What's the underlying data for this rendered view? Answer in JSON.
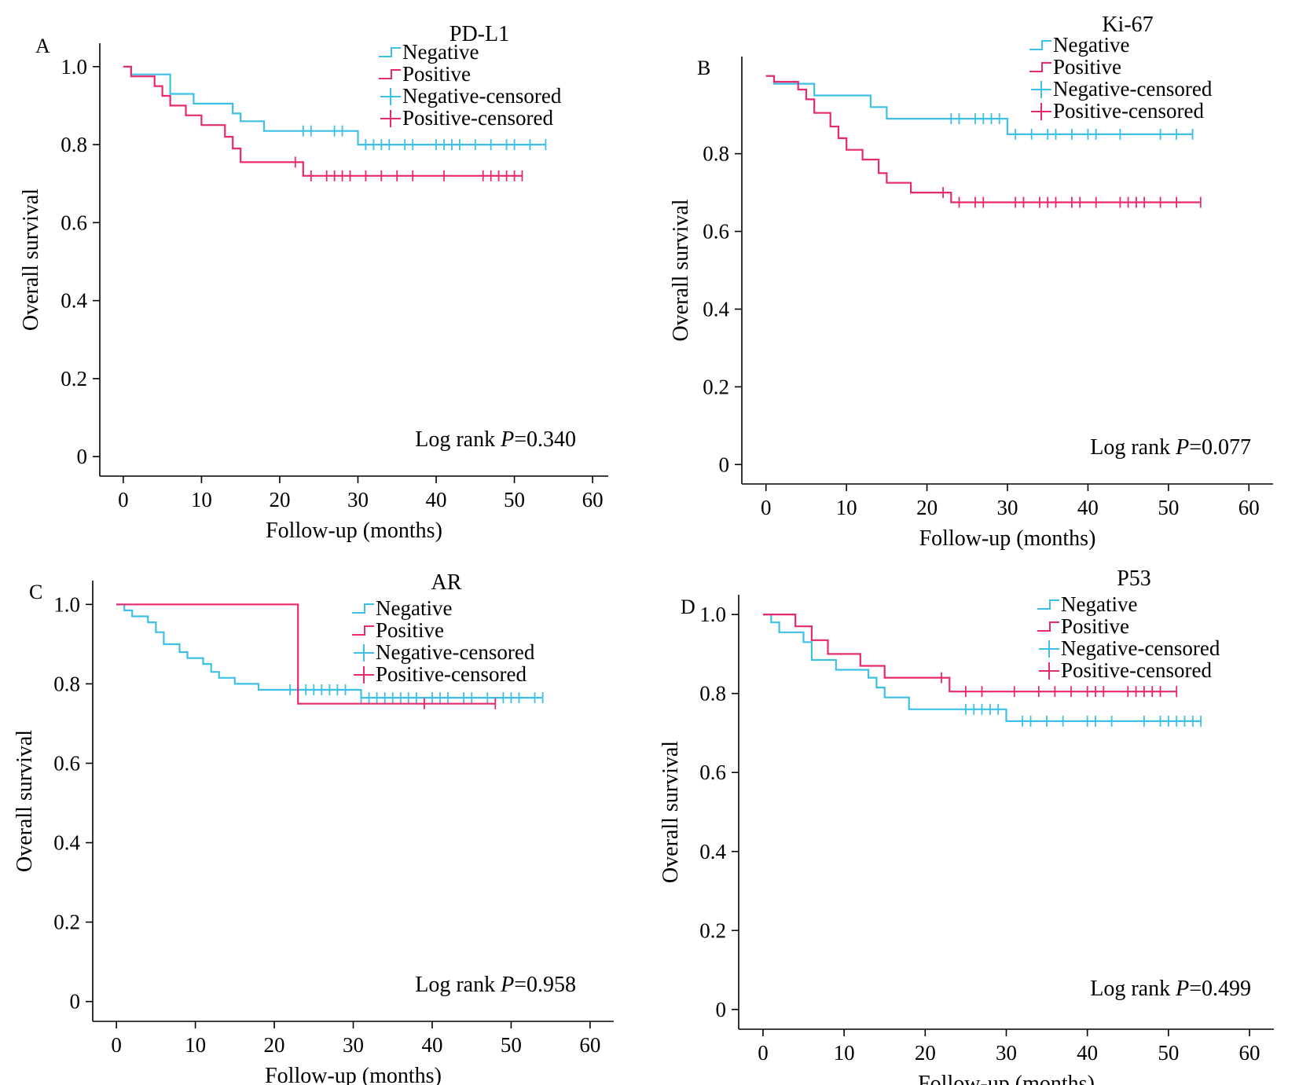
{
  "colors": {
    "negative": "#3cc0e6",
    "positive": "#e8286f"
  },
  "chart_data": [
    {
      "type": "line",
      "panel": "A",
      "title": "PD-L1",
      "xlabel": "Follow-up (months)",
      "ylabel": "Overall survival",
      "xlim": [
        -3,
        62
      ],
      "ylim": [
        -0.05,
        1.06
      ],
      "xticks": [
        0,
        10,
        20,
        30,
        40,
        50,
        60
      ],
      "yticks": [
        0,
        0.2,
        0.4,
        0.6,
        0.8,
        1.0
      ],
      "ytick_labels": [
        "0",
        "0.2",
        "0.4",
        "0.6",
        "0.8",
        "1.0"
      ],
      "legend": [
        "Negative",
        "Positive",
        "Negative-censored",
        "Positive-censored"
      ],
      "annotation": {
        "prefix": "Log rank ",
        "p_symbol": "P",
        "value": "=0.340"
      },
      "series": [
        {
          "name": "Negative",
          "color_key": "negative",
          "steps": [
            [
              0,
              1.0
            ],
            [
              1,
              0.98
            ],
            [
              6,
              0.93
            ],
            [
              9,
              0.905
            ],
            [
              14,
              0.88
            ],
            [
              15,
              0.86
            ],
            [
              18,
              0.835
            ],
            [
              30,
              0.8
            ],
            [
              54,
              0.8
            ]
          ],
          "censored": [
            23,
            24,
            27,
            28,
            31,
            32,
            33,
            34,
            36,
            37,
            40,
            41,
            42,
            43,
            45,
            47,
            49,
            50,
            52,
            54
          ]
        },
        {
          "name": "Positive",
          "color_key": "positive",
          "steps": [
            [
              0,
              1.0
            ],
            [
              1,
              0.975
            ],
            [
              4,
              0.95
            ],
            [
              5,
              0.925
            ],
            [
              6,
              0.9
            ],
            [
              8,
              0.875
            ],
            [
              10,
              0.85
            ],
            [
              13,
              0.82
            ],
            [
              14,
              0.79
            ],
            [
              15,
              0.755
            ],
            [
              23,
              0.72
            ],
            [
              51,
              0.72
            ]
          ],
          "censored": [
            22,
            24,
            26,
            27,
            28,
            29,
            31,
            33,
            35,
            37,
            41,
            46,
            47,
            48,
            49,
            50,
            51
          ]
        }
      ]
    },
    {
      "type": "line",
      "panel": "B",
      "title": "Ki-67",
      "xlabel": "Follow-up (months)",
      "ylabel": "Overall survival",
      "xlim": [
        -3,
        63
      ],
      "ylim": [
        -0.05,
        1.05
      ],
      "xticks": [
        0,
        10,
        20,
        30,
        40,
        50,
        60
      ],
      "yticks": [
        0,
        0.2,
        0.4,
        0.6,
        0.8
      ],
      "ytick_labels": [
        "0",
        "0.2",
        "0.4",
        "0.6",
        "0.8"
      ],
      "legend": [
        "Negative",
        "Positive",
        "Negative-censored",
        "Positive-censored"
      ],
      "annotation": {
        "prefix": "Log rank ",
        "p_symbol": "P",
        "value": "=0.077"
      },
      "series": [
        {
          "name": "Negative",
          "color_key": "negative",
          "steps": [
            [
              0,
              1.0
            ],
            [
              1,
              0.98
            ],
            [
              6,
              0.95
            ],
            [
              13,
              0.92
            ],
            [
              15,
              0.89
            ],
            [
              30,
              0.85
            ],
            [
              53,
              0.85
            ]
          ],
          "censored": [
            23,
            24,
            26,
            27,
            28,
            29,
            31,
            33,
            35,
            36,
            38,
            40,
            41,
            44,
            49,
            51,
            53
          ]
        },
        {
          "name": "Positive",
          "color_key": "positive",
          "steps": [
            [
              0,
              1.0
            ],
            [
              1,
              0.985
            ],
            [
              4,
              0.965
            ],
            [
              5,
              0.94
            ],
            [
              6,
              0.905
            ],
            [
              8,
              0.87
            ],
            [
              9,
              0.84
            ],
            [
              10,
              0.81
            ],
            [
              12,
              0.785
            ],
            [
              14,
              0.75
            ],
            [
              15,
              0.725
            ],
            [
              18,
              0.7
            ],
            [
              23,
              0.675
            ],
            [
              54,
              0.675
            ]
          ],
          "censored": [
            22,
            24,
            26,
            27,
            31,
            32,
            34,
            35,
            36,
            38,
            39,
            41,
            44,
            45,
            46,
            47,
            49,
            51,
            54
          ]
        }
      ]
    },
    {
      "type": "line",
      "panel": "C",
      "title": "AR",
      "xlabel": "Follow-up (months)",
      "ylabel": "Overall survival",
      "xlim": [
        -3,
        63
      ],
      "ylim": [
        -0.05,
        1.06
      ],
      "xticks": [
        0,
        10,
        20,
        30,
        40,
        50,
        60
      ],
      "yticks": [
        0,
        0.2,
        0.4,
        0.6,
        0.8,
        1.0
      ],
      "ytick_labels": [
        "0",
        "0.2",
        "0.4",
        "0.6",
        "0.8",
        "1.0"
      ],
      "legend": [
        "Negative",
        "Positive",
        "Negative-censored",
        "Positive-censored"
      ],
      "annotation": {
        "prefix": "Log rank ",
        "p_symbol": "P",
        "value": "=0.958"
      },
      "series": [
        {
          "name": "Negative",
          "color_key": "negative",
          "steps": [
            [
              0,
              1.0
            ],
            [
              1,
              0.985
            ],
            [
              2,
              0.97
            ],
            [
              4,
              0.955
            ],
            [
              5,
              0.93
            ],
            [
              6,
              0.9
            ],
            [
              8,
              0.88
            ],
            [
              9,
              0.865
            ],
            [
              11,
              0.85
            ],
            [
              12,
              0.83
            ],
            [
              13,
              0.815
            ],
            [
              15,
              0.8
            ],
            [
              18,
              0.785
            ],
            [
              31,
              0.765
            ],
            [
              54,
              0.765
            ]
          ],
          "censored": [
            22,
            23,
            24,
            25,
            26,
            27,
            28,
            29,
            31,
            32,
            33,
            34,
            35,
            36,
            37,
            38,
            40,
            41,
            42,
            44,
            45,
            47,
            49,
            50,
            51,
            53,
            54
          ]
        },
        {
          "name": "Positive",
          "color_key": "positive",
          "steps": [
            [
              0,
              1.0
            ],
            [
              23,
              0.75
            ],
            [
              48,
              0.75
            ]
          ],
          "censored": [
            39,
            48
          ]
        }
      ]
    },
    {
      "type": "line",
      "panel": "D",
      "title": "P53",
      "xlabel": "Follow-up (months)",
      "ylabel": "Overall survival",
      "xlim": [
        -3,
        63
      ],
      "ylim": [
        -0.05,
        1.05
      ],
      "xticks": [
        0,
        10,
        20,
        30,
        40,
        50,
        60
      ],
      "yticks": [
        0,
        0.2,
        0.4,
        0.6,
        0.8,
        1.0
      ],
      "ytick_labels": [
        "0",
        "0.2",
        "0.4",
        "0.6",
        "0.8",
        "1.0"
      ],
      "legend": [
        "Negative",
        "Positive",
        "Negative-censored",
        "Positive-censored"
      ],
      "annotation": {
        "prefix": "Log rank ",
        "p_symbol": "P",
        "value": "=0.499"
      },
      "series": [
        {
          "name": "Negative",
          "color_key": "negative",
          "steps": [
            [
              0,
              1.0
            ],
            [
              1,
              0.98
            ],
            [
              2,
              0.955
            ],
            [
              5,
              0.93
            ],
            [
              6,
              0.885
            ],
            [
              9,
              0.86
            ],
            [
              13,
              0.84
            ],
            [
              14,
              0.815
            ],
            [
              15,
              0.79
            ],
            [
              18,
              0.76
            ],
            [
              30,
              0.73
            ],
            [
              54,
              0.73
            ]
          ],
          "censored": [
            25,
            26,
            27,
            28,
            29,
            32,
            33,
            35,
            37,
            40,
            41,
            43,
            47,
            49,
            50,
            51,
            52,
            53,
            54
          ]
        },
        {
          "name": "Positive",
          "color_key": "positive",
          "steps": [
            [
              0,
              1.0
            ],
            [
              4,
              0.97
            ],
            [
              6,
              0.935
            ],
            [
              8,
              0.9
            ],
            [
              12,
              0.87
            ],
            [
              15,
              0.84
            ],
            [
              23,
              0.805
            ],
            [
              51,
              0.805
            ]
          ],
          "censored": [
            22,
            25,
            27,
            31,
            34,
            36,
            38,
            40,
            41,
            42,
            45,
            46,
            47,
            48,
            49,
            51
          ]
        }
      ]
    }
  ]
}
